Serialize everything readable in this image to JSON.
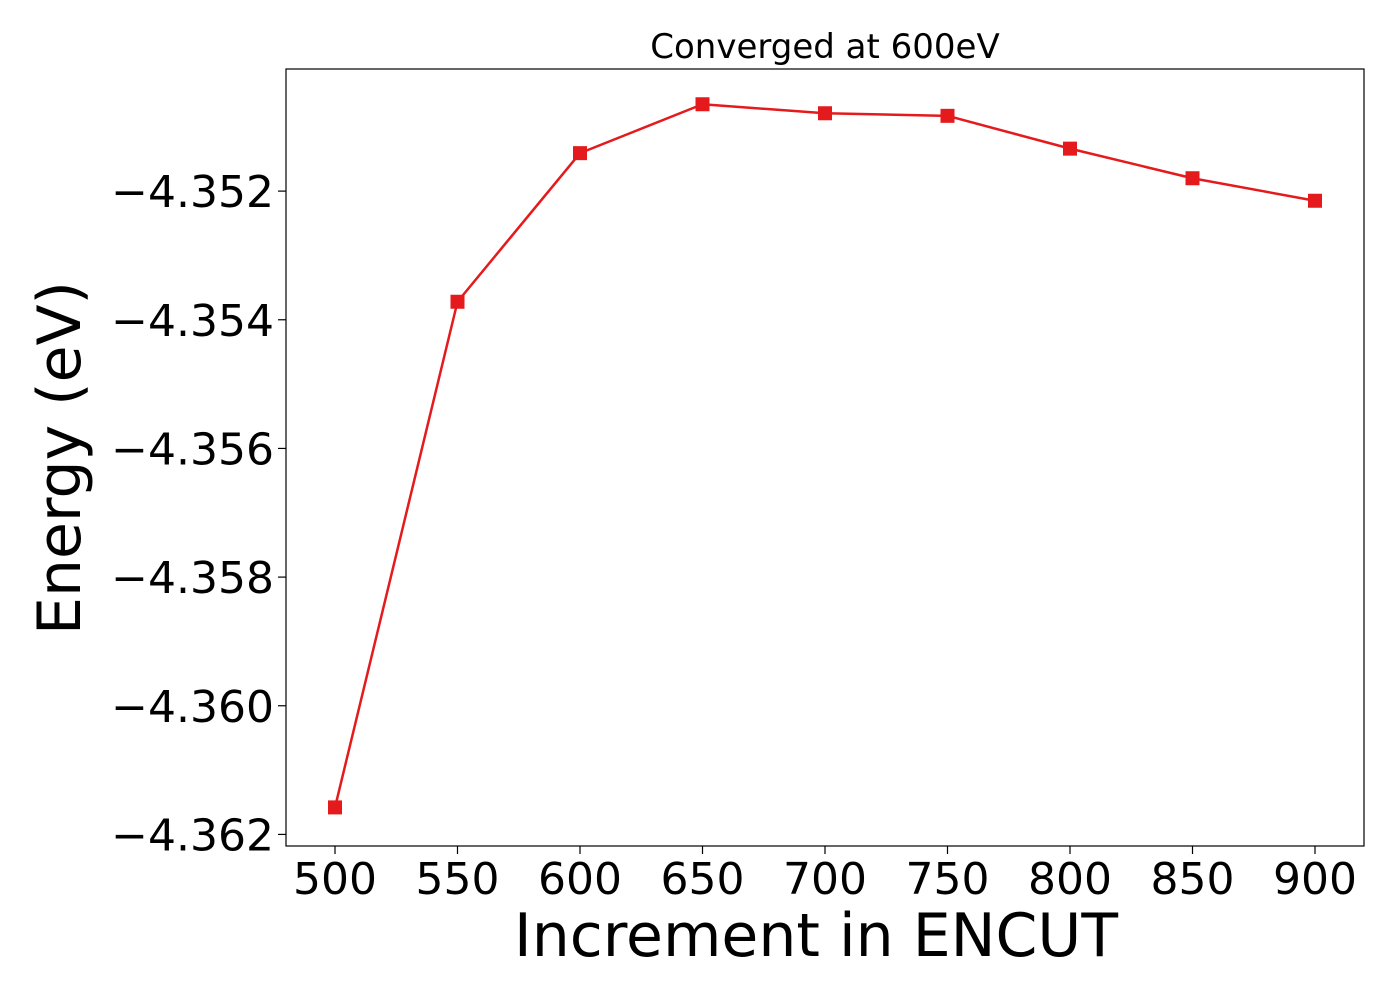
{
  "chart_data": {
    "type": "line",
    "title": "Converged at 600eV",
    "xlabel": "Increment in ENCUT",
    "ylabel": "Energy (eV)",
    "x": [
      500,
      550,
      600,
      650,
      700,
      750,
      800,
      850,
      900
    ],
    "series": [
      {
        "values": [
          -4.36158,
          -4.35372,
          -4.35141,
          -4.35065,
          -4.35079,
          -4.35083,
          -4.35134,
          -4.3518,
          -4.35215
        ],
        "color": "#e41a1c",
        "marker": "square"
      }
    ],
    "xticks": [
      500,
      550,
      600,
      650,
      700,
      750,
      800,
      850,
      900
    ],
    "yticks": [
      -4.362,
      -4.36,
      -4.358,
      -4.356,
      -4.354,
      -4.352
    ],
    "ytick_labels": [
      "−4.362",
      "−4.360",
      "−4.358",
      "−4.356",
      "−4.354",
      "−4.352"
    ],
    "xlim": [
      480,
      920
    ],
    "ylim": [
      -4.36218,
      -4.350102
    ],
    "grid": false,
    "legend": "none"
  }
}
